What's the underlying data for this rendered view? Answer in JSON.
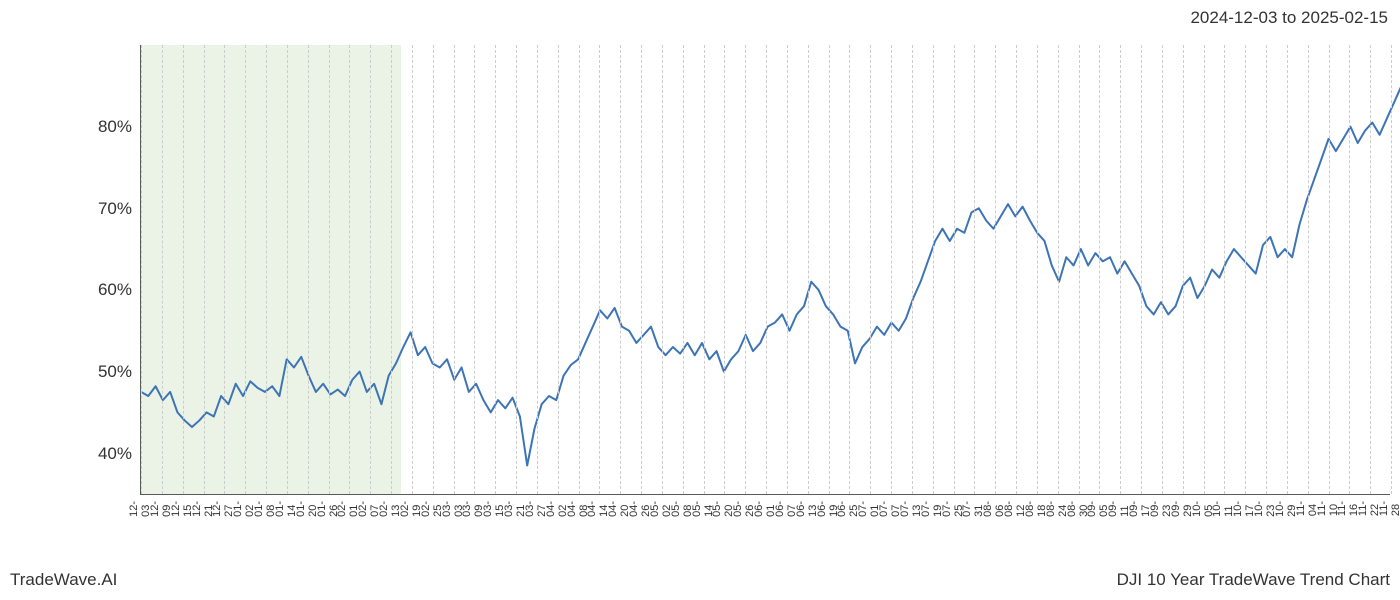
{
  "header": {
    "date_range": "2024-12-03 to 2025-02-15"
  },
  "footer": {
    "left": "TradeWave.AI",
    "right": "DJI 10 Year TradeWave Trend Chart"
  },
  "chart": {
    "type": "line",
    "background_color": "#ffffff",
    "line_color": "#3d74b6",
    "line_width": 2.0,
    "grid_color": "#cccccc",
    "axis_color": "#5a5a5a",
    "highlight_band": {
      "color": "#c6dcb8",
      "opacity": 0.35,
      "x_start": "12-03",
      "x_end": "02-15"
    },
    "y": {
      "min": 35,
      "max": 90,
      "ticks": [
        40,
        50,
        60,
        70,
        80
      ],
      "tick_labels": [
        "40%",
        "50%",
        "60%",
        "70%",
        "80%"
      ],
      "label_fontsize": 17
    },
    "x": {
      "labels": [
        "12-03",
        "12-09",
        "12-15",
        "12-21",
        "12-27",
        "01-02",
        "01-08",
        "01-14",
        "01-20",
        "01-26",
        "02-01",
        "02-07",
        "02-13",
        "02-19",
        "02-25",
        "03-03",
        "03-09",
        "03-15",
        "03-21",
        "03-27",
        "04-02",
        "04-08",
        "04-14",
        "04-20",
        "04-26",
        "05-02",
        "05-08",
        "05-14",
        "05-20",
        "05-26",
        "06-01",
        "06-07",
        "06-13",
        "06-19",
        "06-25",
        "07-01",
        "07-07",
        "07-13",
        "07-19",
        "07-25",
        "07-31",
        "08-06",
        "08-12",
        "08-18",
        "08-24",
        "08-30",
        "09-05",
        "09-11",
        "09-17",
        "09-23",
        "09-29",
        "10-05",
        "10-11",
        "10-17",
        "10-23",
        "10-29",
        "11-04",
        "11-10",
        "11-16",
        "11-22",
        "11-28"
      ],
      "label_fontsize": 11,
      "rotation": 90
    },
    "series": [
      {
        "name": "DJI Trend",
        "color": "#3d74b6",
        "data": [
          [
            0.0,
            47.5
          ],
          [
            0.35,
            47.0
          ],
          [
            0.7,
            48.2
          ],
          [
            1.05,
            46.5
          ],
          [
            1.4,
            47.5
          ],
          [
            1.75,
            45.0
          ],
          [
            2.1,
            44.0
          ],
          [
            2.45,
            43.2
          ],
          [
            2.8,
            44.0
          ],
          [
            3.15,
            45.0
          ],
          [
            3.5,
            44.5
          ],
          [
            3.85,
            47.0
          ],
          [
            4.2,
            46.0
          ],
          [
            4.55,
            48.5
          ],
          [
            4.9,
            47.0
          ],
          [
            5.25,
            48.8
          ],
          [
            5.6,
            48.0
          ],
          [
            5.95,
            47.5
          ],
          [
            6.3,
            48.2
          ],
          [
            6.65,
            47.0
          ],
          [
            7.0,
            51.5
          ],
          [
            7.35,
            50.5
          ],
          [
            7.7,
            51.8
          ],
          [
            8.05,
            49.5
          ],
          [
            8.4,
            47.5
          ],
          [
            8.75,
            48.5
          ],
          [
            9.1,
            47.2
          ],
          [
            9.45,
            47.8
          ],
          [
            9.8,
            47.0
          ],
          [
            10.15,
            49.0
          ],
          [
            10.5,
            50.0
          ],
          [
            10.85,
            47.5
          ],
          [
            11.2,
            48.5
          ],
          [
            11.55,
            46.0
          ],
          [
            11.9,
            49.5
          ],
          [
            12.25,
            51.0
          ],
          [
            12.6,
            53.0
          ],
          [
            12.95,
            54.8
          ],
          [
            13.3,
            52.0
          ],
          [
            13.65,
            53.0
          ],
          [
            14.0,
            51.0
          ],
          [
            14.35,
            50.5
          ],
          [
            14.7,
            51.5
          ],
          [
            15.05,
            49.0
          ],
          [
            15.4,
            50.5
          ],
          [
            15.75,
            47.5
          ],
          [
            16.1,
            48.5
          ],
          [
            16.45,
            46.5
          ],
          [
            16.8,
            45.0
          ],
          [
            17.15,
            46.5
          ],
          [
            17.5,
            45.5
          ],
          [
            17.85,
            46.8
          ],
          [
            18.2,
            44.5
          ],
          [
            18.55,
            38.5
          ],
          [
            18.9,
            43.0
          ],
          [
            19.25,
            46.0
          ],
          [
            19.6,
            47.0
          ],
          [
            19.95,
            46.5
          ],
          [
            20.3,
            49.5
          ],
          [
            20.65,
            50.8
          ],
          [
            21.0,
            51.5
          ],
          [
            21.35,
            53.5
          ],
          [
            21.7,
            55.5
          ],
          [
            22.05,
            57.5
          ],
          [
            22.4,
            56.5
          ],
          [
            22.75,
            57.8
          ],
          [
            23.1,
            55.5
          ],
          [
            23.45,
            55.0
          ],
          [
            23.8,
            53.5
          ],
          [
            24.15,
            54.5
          ],
          [
            24.5,
            55.5
          ],
          [
            24.85,
            53.0
          ],
          [
            25.2,
            52.0
          ],
          [
            25.55,
            53.0
          ],
          [
            25.9,
            52.2
          ],
          [
            26.25,
            53.5
          ],
          [
            26.6,
            52.0
          ],
          [
            26.95,
            53.5
          ],
          [
            27.3,
            51.5
          ],
          [
            27.65,
            52.5
          ],
          [
            28.0,
            50.0
          ],
          [
            28.35,
            51.5
          ],
          [
            28.7,
            52.5
          ],
          [
            29.05,
            54.5
          ],
          [
            29.4,
            52.5
          ],
          [
            29.75,
            53.5
          ],
          [
            30.1,
            55.5
          ],
          [
            30.45,
            56.0
          ],
          [
            30.8,
            57.0
          ],
          [
            31.15,
            55.0
          ],
          [
            31.5,
            57.0
          ],
          [
            31.85,
            58.0
          ],
          [
            32.2,
            61.0
          ],
          [
            32.55,
            60.0
          ],
          [
            32.9,
            58.0
          ],
          [
            33.25,
            57.0
          ],
          [
            33.6,
            55.5
          ],
          [
            33.95,
            55.0
          ],
          [
            34.3,
            51.0
          ],
          [
            34.65,
            53.0
          ],
          [
            35.0,
            54.0
          ],
          [
            35.35,
            55.5
          ],
          [
            35.7,
            54.5
          ],
          [
            36.05,
            56.0
          ],
          [
            36.4,
            55.0
          ],
          [
            36.75,
            56.5
          ],
          [
            37.1,
            59.0
          ],
          [
            37.45,
            61.0
          ],
          [
            37.8,
            63.5
          ],
          [
            38.15,
            66.0
          ],
          [
            38.5,
            67.5
          ],
          [
            38.85,
            66.0
          ],
          [
            39.2,
            67.5
          ],
          [
            39.55,
            67.0
          ],
          [
            39.9,
            69.5
          ],
          [
            40.25,
            70.0
          ],
          [
            40.6,
            68.5
          ],
          [
            40.95,
            67.5
          ],
          [
            41.3,
            69.0
          ],
          [
            41.65,
            70.5
          ],
          [
            42.0,
            69.0
          ],
          [
            42.35,
            70.2
          ],
          [
            42.7,
            68.5
          ],
          [
            43.05,
            67.0
          ],
          [
            43.4,
            66.0
          ],
          [
            43.75,
            63.0
          ],
          [
            44.1,
            61.0
          ],
          [
            44.45,
            64.0
          ],
          [
            44.8,
            63.0
          ],
          [
            45.15,
            65.0
          ],
          [
            45.5,
            63.0
          ],
          [
            45.85,
            64.5
          ],
          [
            46.2,
            63.5
          ],
          [
            46.55,
            64.0
          ],
          [
            46.9,
            62.0
          ],
          [
            47.25,
            63.5
          ],
          [
            47.6,
            62.0
          ],
          [
            47.95,
            60.5
          ],
          [
            48.3,
            58.0
          ],
          [
            48.65,
            57.0
          ],
          [
            49.0,
            58.5
          ],
          [
            49.35,
            57.0
          ],
          [
            49.7,
            58.0
          ],
          [
            50.05,
            60.5
          ],
          [
            50.4,
            61.5
          ],
          [
            50.75,
            59.0
          ],
          [
            51.1,
            60.5
          ],
          [
            51.45,
            62.5
          ],
          [
            51.8,
            61.5
          ],
          [
            52.15,
            63.5
          ],
          [
            52.5,
            65.0
          ],
          [
            52.85,
            64.0
          ],
          [
            53.2,
            63.0
          ],
          [
            53.55,
            62.0
          ],
          [
            53.9,
            65.5
          ],
          [
            54.25,
            66.5
          ],
          [
            54.6,
            64.0
          ],
          [
            54.95,
            65.0
          ],
          [
            55.3,
            64.0
          ],
          [
            55.65,
            68.0
          ],
          [
            56.0,
            71.0
          ],
          [
            56.35,
            73.5
          ],
          [
            56.7,
            76.0
          ],
          [
            57.05,
            78.5
          ],
          [
            57.4,
            77.0
          ],
          [
            57.75,
            78.5
          ],
          [
            58.1,
            80.0
          ],
          [
            58.45,
            78.0
          ],
          [
            58.8,
            79.5
          ],
          [
            59.15,
            80.5
          ],
          [
            59.5,
            79.0
          ],
          [
            59.85,
            81.0
          ],
          [
            60.2,
            83.0
          ],
          [
            60.55,
            85.0
          ],
          [
            60.9,
            86.5
          ]
        ]
      }
    ]
  }
}
